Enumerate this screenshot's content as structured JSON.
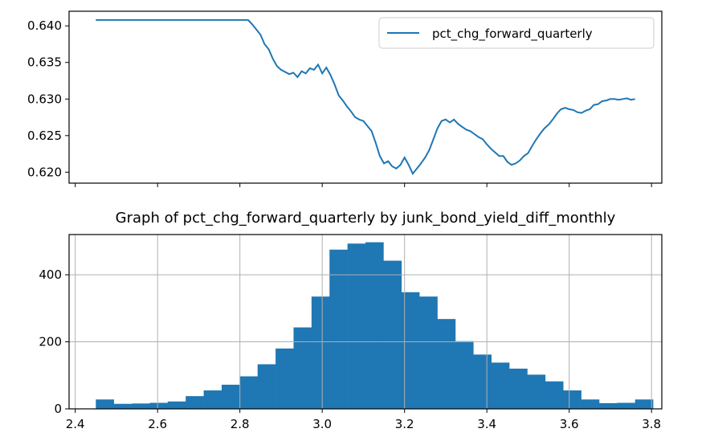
{
  "chart_data": [
    {
      "type": "line",
      "title": "",
      "xlabel": "",
      "ylabel": "",
      "ylim": [
        0.6185,
        0.642
      ],
      "xlim": [
        2.385,
        3.825
      ],
      "yticks": [
        "0.620",
        "0.625",
        "0.630",
        "0.635",
        "0.640"
      ],
      "xticks_labeled": false,
      "grid": false,
      "legend_position": "top-right",
      "color": "#1f77b4",
      "series": [
        {
          "name": "pct_chg_forward_quarterly",
          "x": [
            2.45,
            2.55,
            2.65,
            2.75,
            2.8,
            2.82,
            2.83,
            2.84,
            2.85,
            2.86,
            2.87,
            2.88,
            2.89,
            2.9,
            2.91,
            2.92,
            2.93,
            2.94,
            2.95,
            2.96,
            2.97,
            2.98,
            2.99,
            3.0,
            3.01,
            3.02,
            3.03,
            3.04,
            3.05,
            3.06,
            3.07,
            3.08,
            3.09,
            3.1,
            3.11,
            3.12,
            3.13,
            3.14,
            3.15,
            3.16,
            3.17,
            3.18,
            3.19,
            3.2,
            3.21,
            3.22,
            3.23,
            3.24,
            3.25,
            3.26,
            3.27,
            3.28,
            3.29,
            3.3,
            3.31,
            3.32,
            3.33,
            3.34,
            3.35,
            3.36,
            3.37,
            3.38,
            3.39,
            3.4,
            3.41,
            3.42,
            3.43,
            3.44,
            3.45,
            3.46,
            3.47,
            3.48,
            3.49,
            3.5,
            3.51,
            3.52,
            3.53,
            3.54,
            3.55,
            3.56,
            3.57,
            3.58,
            3.59,
            3.6,
            3.61,
            3.62,
            3.63,
            3.64,
            3.65,
            3.66,
            3.67,
            3.68,
            3.69,
            3.7,
            3.71,
            3.72,
            3.73,
            3.74,
            3.75,
            3.76
          ],
          "y": [
            0.6408,
            0.6408,
            0.6408,
            0.6408,
            0.6408,
            0.6408,
            0.6402,
            0.6395,
            0.6388,
            0.6375,
            0.6368,
            0.6355,
            0.6345,
            0.634,
            0.6337,
            0.6334,
            0.6336,
            0.633,
            0.6338,
            0.6335,
            0.6342,
            0.634,
            0.6347,
            0.6335,
            0.6343,
            0.6333,
            0.632,
            0.6305,
            0.6298,
            0.629,
            0.6283,
            0.6275,
            0.6272,
            0.627,
            0.6263,
            0.6256,
            0.624,
            0.6222,
            0.6212,
            0.6215,
            0.6208,
            0.6205,
            0.621,
            0.622,
            0.621,
            0.6198,
            0.6205,
            0.6212,
            0.622,
            0.623,
            0.6245,
            0.626,
            0.627,
            0.6272,
            0.6268,
            0.6272,
            0.6266,
            0.6262,
            0.6258,
            0.6256,
            0.6252,
            0.6248,
            0.6245,
            0.6238,
            0.6232,
            0.6227,
            0.6222,
            0.6222,
            0.6214,
            0.621,
            0.6212,
            0.6216,
            0.6222,
            0.6226,
            0.6236,
            0.6245,
            0.6253,
            0.626,
            0.6265,
            0.6272,
            0.628,
            0.6286,
            0.6288,
            0.6286,
            0.6285,
            0.6282,
            0.6281,
            0.6284,
            0.6286,
            0.6292,
            0.6293,
            0.6297,
            0.6298,
            0.63,
            0.63,
            0.6299,
            0.63,
            0.6301,
            0.6299,
            0.63
          ]
        }
      ]
    },
    {
      "type": "bar",
      "title": "Graph of pct_chg_forward_quarterly by junk_bond_yield_diff_monthly",
      "xlabel": "",
      "ylabel": "",
      "xlim": [
        2.385,
        3.825
      ],
      "ylim": [
        0,
        520
      ],
      "xticks": [
        "2.4",
        "2.6",
        "2.8",
        "3.0",
        "3.2",
        "3.4",
        "3.6",
        "3.8"
      ],
      "yticks": [
        "0",
        "200",
        "400"
      ],
      "grid": true,
      "color": "#1f77b4",
      "bin_start": 2.45,
      "bin_width": 0.04367,
      "values": [
        28,
        15,
        16,
        18,
        22,
        38,
        55,
        72,
        97,
        133,
        180,
        243,
        335,
        475,
        493,
        497,
        442,
        348,
        335,
        268,
        202,
        162,
        138,
        120,
        102,
        82,
        55,
        28,
        17,
        18,
        28
      ]
    }
  ]
}
